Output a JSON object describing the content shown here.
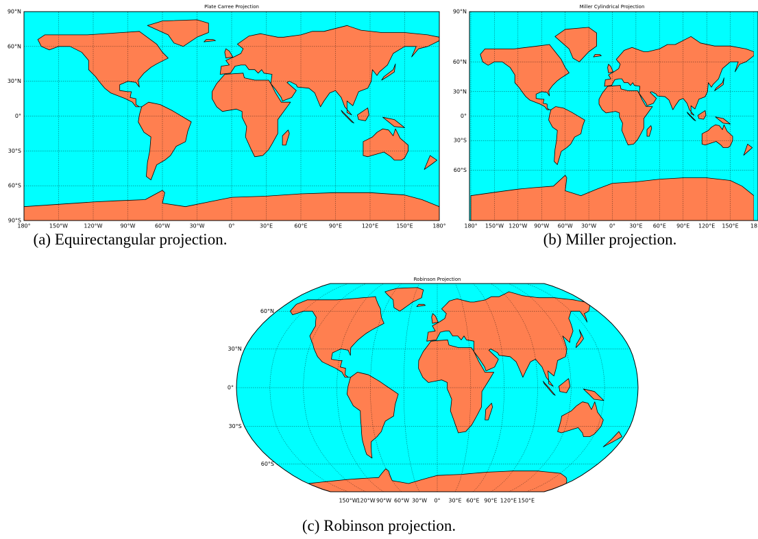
{
  "panels": [
    {
      "title": "Plate Carree Projection",
      "lat_labels": [
        "90°N",
        "60°N",
        "30°N",
        "0°",
        "30°S",
        "60°S",
        "90°S"
      ],
      "lon_labels": [
        "180°",
        "150°W",
        "120°W",
        "90°W",
        "60°W",
        "30°W",
        "0°",
        "30°E",
        "60°E",
        "90°E",
        "120°E",
        "150°E",
        "180°"
      ],
      "caption": "(a) Equirectangular projection."
    },
    {
      "title": "Miller Cylindrical Projection",
      "lat_labels": [
        "90°N",
        "60°N",
        "30°N",
        "0°",
        "30°S",
        "60°S"
      ],
      "lon_labels": [
        "180°",
        "150°W",
        "120°W",
        "90°W",
        "60°W",
        "30°W",
        "0°",
        "30°E",
        "60°E",
        "90°E",
        "120°E",
        "150°E",
        "18"
      ],
      "caption": "(b) Miller projection."
    },
    {
      "title": "Robinson Projection",
      "lat_labels": [
        "60°N",
        "30°N",
        "0°",
        "30°S",
        "60°S"
      ],
      "lon_labels": [
        "150°W",
        "120°W",
        "90°W",
        "60°W",
        "30°W",
        "0°",
        "30°E",
        "60°E",
        "90°E",
        "120°E",
        "150°E"
      ],
      "caption": "(c) Robinson projection."
    }
  ]
}
